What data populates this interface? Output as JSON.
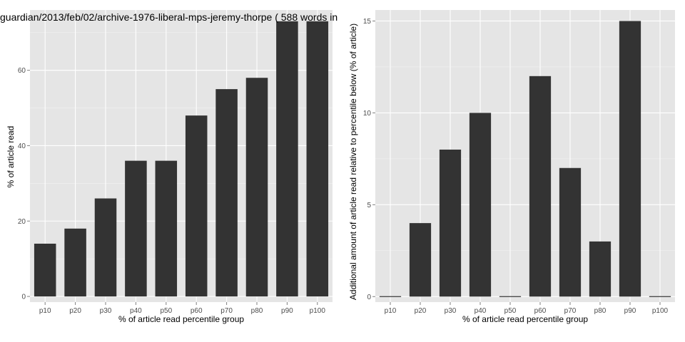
{
  "title": "guardian/2013/feb/02/archive-1976-liberal-mps-jeremy-thorpe ( 588 words in",
  "colors": {
    "panel_bg": "#e5e5e5",
    "grid": "#ffffff",
    "bar": "#333333",
    "tick_text": "#4d4d4d"
  },
  "chart_data": [
    {
      "type": "bar",
      "categories": [
        "p10",
        "p20",
        "p30",
        "p40",
        "p50",
        "p60",
        "p70",
        "p80",
        "p90",
        "p100"
      ],
      "values": [
        14,
        18,
        26,
        36,
        36,
        48,
        55,
        58,
        73,
        73
      ],
      "xlabel": "% of article read percentile group",
      "ylabel": "% of article read",
      "ylim": [
        -1.5,
        76
      ],
      "yticks": [
        0,
        20,
        40,
        60
      ],
      "grid": true
    },
    {
      "type": "bar",
      "categories": [
        "p10",
        "p20",
        "p30",
        "p40",
        "p50",
        "p60",
        "p70",
        "p80",
        "p90",
        "p100"
      ],
      "values": [
        0,
        4,
        8,
        10,
        0,
        12,
        7,
        3,
        15,
        0
      ],
      "xlabel": "% of article read percentile group",
      "ylabel": "Additional amount of article read relative to percentile below (% of article)",
      "ylim": [
        -0.3,
        15.6
      ],
      "yticks": [
        0,
        5,
        10,
        15
      ],
      "grid": true
    }
  ]
}
